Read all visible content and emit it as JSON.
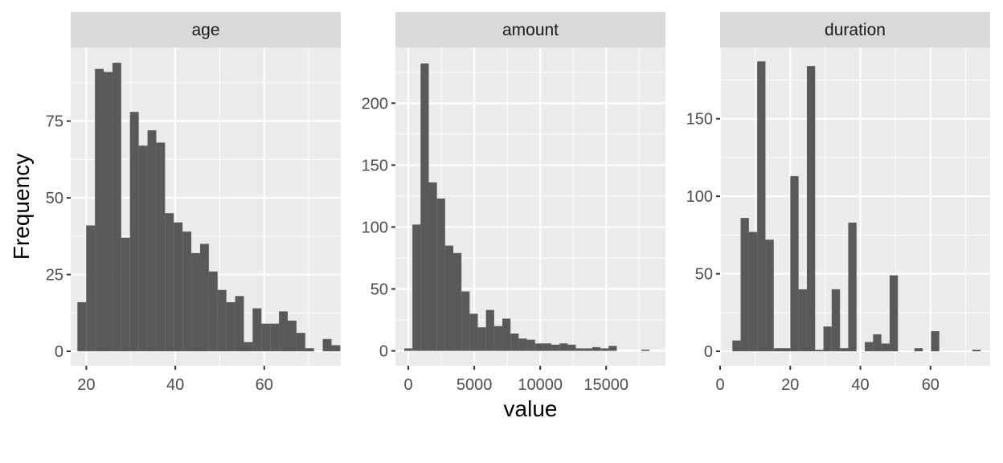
{
  "chart_data": {
    "type": "bar",
    "subtype": "histogram",
    "layout": "faceted, 1 row x 3 columns, free scales",
    "xlabel": "value",
    "ylabel": "Frequency",
    "grid": true,
    "bar_color": "#595959",
    "panel_background": "#ebebeb",
    "strip_background": "#d9d9d9",
    "grid_color": "#ffffff",
    "facets": [
      {
        "name": "age",
        "xlim": [
          16.5,
          77.2
        ],
        "ylim": [
          -4.7,
          99
        ],
        "x_ticks": [
          20,
          40,
          60
        ],
        "y_ticks": [
          0,
          25,
          50,
          75
        ],
        "bins": 30,
        "bin_start": 18,
        "bin_width": 1.97,
        "values": [
          16,
          41,
          92,
          91,
          94,
          37,
          78,
          67,
          72,
          68,
          45,
          42,
          39,
          32,
          35,
          26,
          20,
          16,
          18,
          3,
          14,
          9,
          9,
          13,
          10,
          6,
          1,
          0,
          4,
          2
        ]
      },
      {
        "name": "amount",
        "xlim": [
          -980,
          19500
        ],
        "ylim": [
          -12,
          245
        ],
        "x_ticks": [
          0,
          5000,
          10000,
          15000
        ],
        "y_ticks": [
          0,
          50,
          100,
          150,
          200
        ],
        "bins": 30,
        "bin_start": -310,
        "bin_width": 620,
        "values": [
          2,
          102,
          232,
          136,
          123,
          85,
          79,
          48,
          30,
          19,
          33,
          20,
          26,
          14,
          10,
          9,
          6,
          6,
          5,
          6,
          5,
          2,
          2,
          3,
          2,
          4,
          0,
          0,
          0,
          1
        ]
      },
      {
        "name": "duration",
        "xlim": [
          0,
          77
        ],
        "ylim": [
          -9.3,
          196
        ],
        "x_ticks": [
          0,
          20,
          40,
          60
        ],
        "y_ticks": [
          0,
          50,
          100,
          150
        ],
        "bins": 30,
        "bin_start": 3.5,
        "bin_width": 2.36,
        "values": [
          7,
          86,
          77,
          187,
          72,
          2,
          2,
          113,
          40,
          184,
          1,
          16,
          40,
          2,
          83,
          0,
          6,
          11,
          5,
          49,
          0,
          0,
          2,
          0,
          13,
          0,
          0,
          0,
          0,
          1
        ]
      }
    ]
  }
}
